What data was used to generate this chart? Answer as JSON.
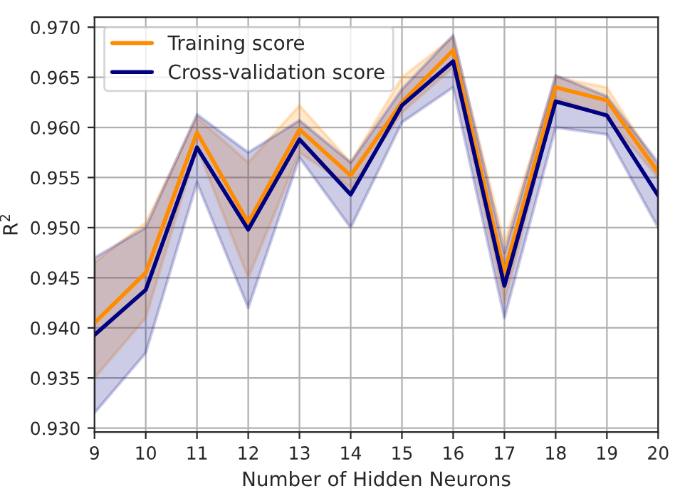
{
  "chart_data": {
    "type": "line",
    "xlabel": "Number of Hidden Neurons",
    "ylabel": "R$^{2}$",
    "x": [
      9,
      10,
      11,
      12,
      13,
      14,
      15,
      16,
      17,
      18,
      19,
      20
    ],
    "series": [
      {
        "name": "Training score",
        "color": "#ff8c00",
        "values": [
          0.9405,
          0.9455,
          0.9595,
          0.9505,
          0.9598,
          0.9552,
          0.9625,
          0.9677,
          0.9455,
          0.964,
          0.9627,
          0.9555
        ],
        "lower": [
          0.935,
          0.941,
          0.958,
          0.945,
          0.9575,
          0.954,
          0.9615,
          0.966,
          0.9425,
          0.963,
          0.961,
          0.955
        ],
        "upper": [
          0.9465,
          0.9505,
          0.961,
          0.9565,
          0.9622,
          0.9565,
          0.965,
          0.969,
          0.9485,
          0.965,
          0.964,
          0.956
        ]
      },
      {
        "name": "Cross-validation score",
        "color": "#000080",
        "values": [
          0.9393,
          0.9438,
          0.958,
          0.9498,
          0.9588,
          0.9533,
          0.9622,
          0.9666,
          0.9442,
          0.9626,
          0.9612,
          0.9532
        ],
        "lower": [
          0.9315,
          0.9375,
          0.9545,
          0.942,
          0.957,
          0.95,
          0.9605,
          0.964,
          0.941,
          0.96,
          0.9593,
          0.95
        ],
        "upper": [
          0.947,
          0.95,
          0.9613,
          0.9575,
          0.9607,
          0.9565,
          0.9638,
          0.9692,
          0.9475,
          0.9652,
          0.9631,
          0.9565
        ]
      }
    ],
    "xlim": [
      9,
      20
    ],
    "xticks": [
      9,
      10,
      11,
      12,
      13,
      14,
      15,
      16,
      17,
      18,
      19,
      20
    ],
    "ylim": [
      0.9296,
      0.971
    ],
    "yticks": [
      {
        "value": 0.93,
        "label": "0.930"
      },
      {
        "value": 0.935,
        "label": "0.935"
      },
      {
        "value": 0.94,
        "label": "0.940"
      },
      {
        "value": 0.945,
        "label": "0.945"
      },
      {
        "value": 0.95,
        "label": "0.950"
      },
      {
        "value": 0.955,
        "label": "0.955"
      },
      {
        "value": 0.96,
        "label": "0.960"
      },
      {
        "value": 0.965,
        "label": "0.965"
      },
      {
        "value": 0.97,
        "label": "0.970"
      }
    ],
    "grid": true,
    "legend": "top left",
    "marker": "none",
    "line_style": "solid"
  }
}
